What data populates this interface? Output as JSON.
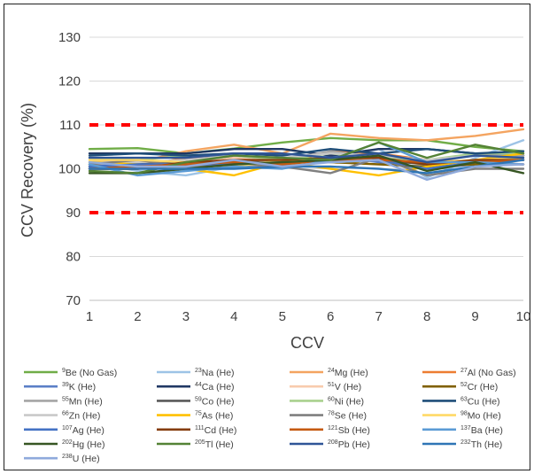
{
  "chart_data": {
    "type": "line",
    "xlabel": "CCV",
    "ylabel": "CCV Recovery (%)",
    "x": [
      1,
      2,
      3,
      4,
      5,
      6,
      7,
      8,
      9,
      10
    ],
    "ylim": [
      70,
      130
    ],
    "yticks": [
      70,
      80,
      90,
      100,
      110,
      120,
      130
    ],
    "gridlines": true,
    "legend_position": "bottom",
    "limits": [
      {
        "value": 110,
        "color": "#ff0000"
      },
      {
        "value": 90,
        "color": "#ff0000"
      }
    ],
    "series": [
      {
        "name": "Be (No Gas)",
        "mass": "9",
        "color": "#70ad47",
        "values": [
          104.5,
          104.7,
          103.5,
          104.6,
          106.0,
          107.0,
          106.5,
          106.5,
          105.0,
          104.0
        ]
      },
      {
        "name": "Na (He)",
        "mass": "23",
        "color": "#9dc3e6",
        "values": [
          101.5,
          99.5,
          98.5,
          100.5,
          101.5,
          102.5,
          104.5,
          98.0,
          102.5,
          106.5
        ]
      },
      {
        "name": "Mg (He)",
        "mass": "24",
        "color": "#f4a460",
        "values": [
          102.0,
          101.5,
          104.0,
          105.5,
          103.5,
          108.0,
          107.0,
          106.5,
          107.5,
          109.0
        ]
      },
      {
        "name": "Al (No Gas)",
        "mass": "27",
        "color": "#ed7d31",
        "values": [
          100.5,
          100.5,
          102.5,
          102.5,
          101.0,
          104.0,
          103.5,
          102.0,
          101.5,
          101.0
        ]
      },
      {
        "name": "K (He)",
        "mass": "39",
        "color": "#5b7fc7",
        "values": [
          100.0,
          101.5,
          101.0,
          101.5,
          100.5,
          103.0,
          101.5,
          100.0,
          101.0,
          103.0
        ]
      },
      {
        "name": "Ca (He)",
        "mass": "44",
        "color": "#203864",
        "values": [
          103.5,
          103.5,
          103.5,
          104.5,
          104.5,
          103.0,
          104.5,
          104.5,
          103.5,
          103.0
        ]
      },
      {
        "name": "V (He)",
        "mass": "51",
        "color": "#f8cbad",
        "values": [
          101.0,
          100.5,
          101.0,
          102.5,
          101.5,
          102.0,
          102.0,
          101.0,
          102.0,
          102.0
        ]
      },
      {
        "name": "Cr (He)",
        "mass": "52",
        "color": "#806000",
        "values": [
          100.0,
          100.0,
          101.0,
          100.5,
          102.0,
          101.5,
          101.0,
          100.5,
          101.0,
          101.0
        ]
      },
      {
        "name": "Mn (He)",
        "mass": "55",
        "color": "#a5a5a5",
        "values": [
          101.0,
          101.5,
          101.5,
          103.0,
          102.0,
          104.0,
          102.5,
          102.0,
          103.0,
          103.0
        ]
      },
      {
        "name": "Co (He)",
        "mass": "59",
        "color": "#595959",
        "values": [
          100.5,
          101.0,
          101.5,
          101.5,
          101.5,
          102.0,
          102.0,
          101.0,
          102.0,
          102.5
        ]
      },
      {
        "name": "Ni (He)",
        "mass": "60",
        "color": "#a9d18e",
        "values": [
          102.5,
          102.0,
          103.0,
          103.0,
          102.0,
          103.5,
          102.5,
          102.0,
          103.5,
          103.5
        ]
      },
      {
        "name": "Cu (He)",
        "mass": "63",
        "color": "#1f4e79",
        "values": [
          103.0,
          103.5,
          103.0,
          103.5,
          103.0,
          104.5,
          103.5,
          104.5,
          103.5,
          104.0
        ]
      },
      {
        "name": "Zn (He)",
        "mass": "66",
        "color": "#c9c9c9",
        "values": [
          101.5,
          101.5,
          102.0,
          103.0,
          102.5,
          103.5,
          103.0,
          102.0,
          103.0,
          102.5
        ]
      },
      {
        "name": "As (He)",
        "mass": "75",
        "color": "#ffc000",
        "values": [
          101.5,
          101.0,
          100.0,
          98.5,
          101.5,
          100.0,
          98.5,
          100.5,
          102.0,
          103.5
        ]
      },
      {
        "name": "Se (He)",
        "mass": "78",
        "color": "#7f7f7f",
        "values": [
          101.0,
          102.0,
          100.5,
          101.0,
          100.5,
          99.0,
          102.5,
          98.5,
          100.0,
          100.0
        ]
      },
      {
        "name": "Mo (He)",
        "mass": "98",
        "color": "#ffd966",
        "values": [
          102.0,
          102.0,
          101.5,
          100.5,
          102.0,
          101.5,
          102.0,
          101.5,
          102.0,
          102.5
        ]
      },
      {
        "name": "Ag (He)",
        "mass": "107",
        "color": "#4472c4",
        "values": [
          100.5,
          101.0,
          101.0,
          101.0,
          101.5,
          101.5,
          102.0,
          100.0,
          101.5,
          102.0
        ]
      },
      {
        "name": "Cd (He)",
        "mass": "111",
        "color": "#843c0c",
        "values": [
          100.0,
          100.0,
          101.5,
          102.0,
          102.0,
          102.5,
          102.5,
          101.0,
          102.0,
          102.0
        ]
      },
      {
        "name": "Sb (He)",
        "mass": "121",
        "color": "#c55a11",
        "values": [
          100.0,
          100.5,
          101.0,
          101.5,
          101.0,
          102.0,
          102.0,
          101.5,
          101.5,
          102.0
        ]
      },
      {
        "name": "Ba (He)",
        "mass": "137",
        "color": "#5b9bd5",
        "values": [
          101.0,
          98.5,
          99.5,
          100.5,
          100.0,
          102.0,
          106.0,
          101.5,
          101.5,
          101.0
        ]
      },
      {
        "name": "Hg (He)",
        "mass": "202",
        "color": "#375623",
        "values": [
          99.0,
          99.0,
          100.0,
          101.0,
          101.5,
          102.0,
          103.0,
          99.5,
          101.5,
          99.0
        ]
      },
      {
        "name": "Tl (He)",
        "mass": "205",
        "color": "#548235",
        "values": [
          99.5,
          99.0,
          101.5,
          103.0,
          102.5,
          102.0,
          106.0,
          102.5,
          105.5,
          103.5
        ]
      },
      {
        "name": "Pb (He)",
        "mass": "208",
        "color": "#2f5597",
        "values": [
          102.5,
          102.5,
          102.5,
          103.5,
          103.5,
          102.5,
          103.5,
          101.5,
          103.0,
          102.5
        ]
      },
      {
        "name": "Th (He)",
        "mass": "232",
        "color": "#2e75b6",
        "values": [
          100.0,
          100.0,
          100.0,
          100.0,
          100.5,
          100.5,
          100.0,
          99.0,
          100.5,
          102.0
        ]
      },
      {
        "name": "U (He)",
        "mass": "238",
        "color": "#8faadc",
        "values": [
          101.5,
          100.5,
          100.5,
          102.0,
          100.5,
          101.5,
          102.0,
          97.5,
          100.5,
          101.0
        ]
      }
    ]
  }
}
